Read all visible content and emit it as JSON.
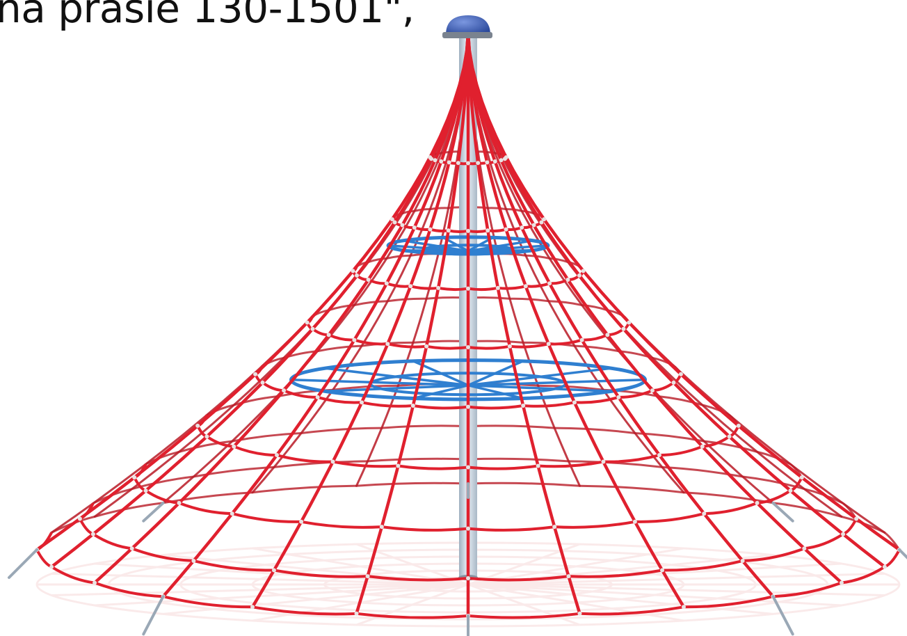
{
  "caption": "na prasie 130-1501\",",
  "image": {
    "subject": "rope-pyramid-climbing-net-icon",
    "colors": {
      "rope_red": "#e0202e",
      "rope_red_dark": "#b81a26",
      "rope_blue": "#2f7fd0",
      "pole": "#c9d6e2",
      "cap": "#3b5fb5",
      "ground": "#f6dada"
    }
  }
}
